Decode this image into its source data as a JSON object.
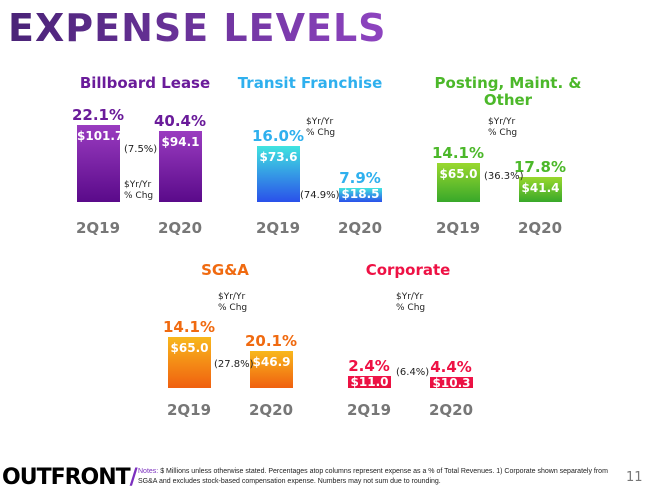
{
  "title": "EXPENSE LEVELS",
  "yoy_label_line1": "$Yr/Yr",
  "yoy_label_line2": "% Chg",
  "chart_data": [
    {
      "type": "bar",
      "title": "Billboard Lease",
      "categories": [
        "2Q19",
        "2Q20"
      ],
      "values": [
        101.7,
        94.1
      ],
      "value_labels": [
        "$101.7",
        "$94.1"
      ],
      "pct_of_revenue": [
        "22.1%",
        "40.4%"
      ],
      "yoy_change": "(7.5%)",
      "color": "#7a1fa8"
    },
    {
      "type": "bar",
      "title": "Transit Franchise",
      "categories": [
        "2Q19",
        "2Q20"
      ],
      "values": [
        73.6,
        18.5
      ],
      "value_labels": [
        "$73.6",
        "$18.5"
      ],
      "pct_of_revenue": [
        "16.0%",
        "7.9%"
      ],
      "yoy_change": "(74.9%)",
      "color": "#2fa8f0"
    },
    {
      "type": "bar",
      "title": "Posting, Maint. & Other",
      "categories": [
        "2Q19",
        "2Q20"
      ],
      "values": [
        65.0,
        41.4
      ],
      "value_labels": [
        "$65.0",
        "$41.4"
      ],
      "pct_of_revenue": [
        "14.1%",
        "17.8%"
      ],
      "yoy_change": "(36.3%)",
      "color": "#5cbf2a"
    },
    {
      "type": "bar",
      "title": "SG&A",
      "categories": [
        "2Q19",
        "2Q20"
      ],
      "values": [
        65.0,
        46.9
      ],
      "value_labels": [
        "$65.0",
        "$46.9"
      ],
      "pct_of_revenue": [
        "14.1%",
        "20.1%"
      ],
      "yoy_change": "(27.8%)",
      "color": "#f28a12"
    },
    {
      "type": "bar",
      "title": "Corporate",
      "categories": [
        "2Q19",
        "2Q20"
      ],
      "values": [
        11.0,
        10.3
      ],
      "value_labels": [
        "$11.0",
        "$10.3"
      ],
      "pct_of_revenue": [
        "2.4%",
        "4.4%"
      ],
      "yoy_change": "(6.4%)",
      "color": "#ee1144"
    }
  ],
  "footer": {
    "logo": "OUTFRONT",
    "notes_label": "Notes:",
    "notes": "$ Millions unless otherwise stated.  Percentages atop columns represent expense as a % of Total Revenues.  1) Corporate shown separately from SG&A and excludes stock-based compensation expense. Numbers may not sum due to rounding.",
    "page_number": "11"
  }
}
